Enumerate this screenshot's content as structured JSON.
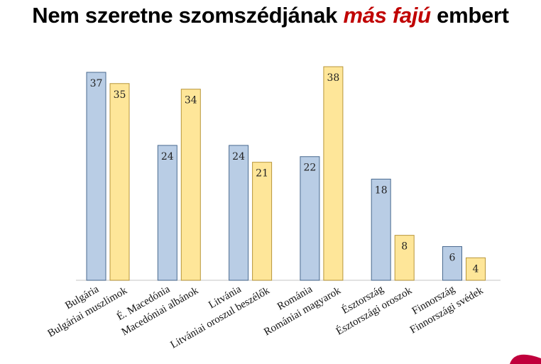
{
  "title": {
    "part1": "Nem szeretne szomszédjának ",
    "emphasis": "más fajú",
    "part2": " embert"
  },
  "chart_data": {
    "type": "bar",
    "title": "Nem szeretne szomszédjának más fajú embert",
    "xlabel": "",
    "ylabel": "",
    "ylim": [
      0,
      38
    ],
    "grid": false,
    "legend": "none",
    "groups": [
      {
        "country": "Bulgária",
        "minority": "Bulgáriai muszlimok",
        "country_value": 37,
        "minority_value": 35
      },
      {
        "country": "É. Macedónia",
        "minority": "Macedóniai albánok",
        "country_value": 24,
        "minority_value": 34
      },
      {
        "country": "Litvánia",
        "minority": "Litvániai oroszul beszélők",
        "country_value": 24,
        "minority_value": 21
      },
      {
        "country": "Románia",
        "minority": "Romániai  magyarok",
        "country_value": 22,
        "minority_value": 38
      },
      {
        "country": "Észtország",
        "minority": "Észtországi oroszok",
        "country_value": 18,
        "minority_value": 8
      },
      {
        "country": "Finnország",
        "minority": "Finnországi svédek",
        "country_value": 6,
        "minority_value": 4
      }
    ],
    "series_colors": {
      "country": "#b9cde5",
      "minority": "#fee699"
    }
  }
}
